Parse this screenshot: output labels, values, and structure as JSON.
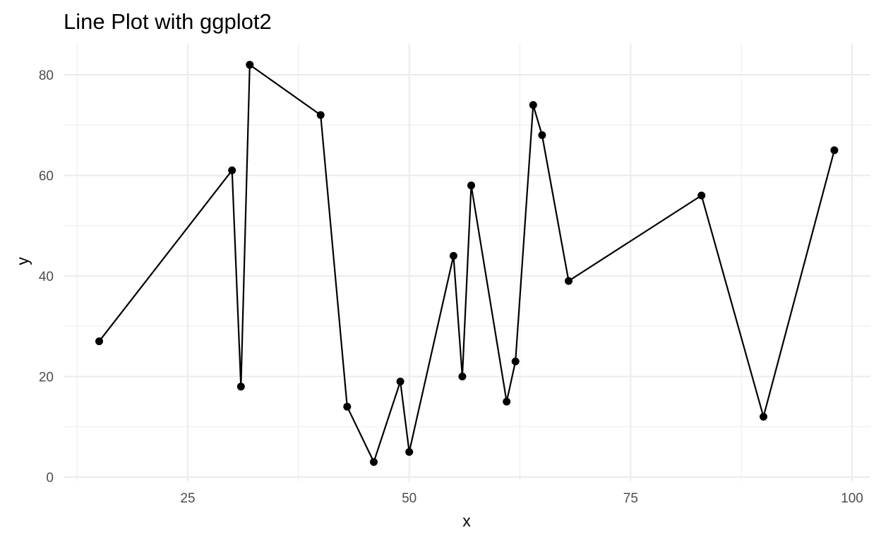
{
  "chart_data": {
    "type": "line",
    "title": "Line Plot with ggplot2",
    "xlabel": "x",
    "ylabel": "y",
    "xlim": [
      12,
      100
    ],
    "ylim": [
      0,
      85
    ],
    "x_ticks": [
      25,
      50,
      75,
      100
    ],
    "y_ticks": [
      0,
      20,
      40,
      60,
      80
    ],
    "x_minor": [
      12.5,
      37.5,
      62.5,
      87.5
    ],
    "y_minor": [
      10,
      30,
      50,
      70
    ],
    "grid": true,
    "legend": "none",
    "line_color": "#000000",
    "series": [
      {
        "x": [
          15,
          30,
          31,
          32,
          40,
          43,
          46,
          49,
          50,
          55,
          56,
          57,
          61,
          62,
          64,
          65,
          68,
          83,
          90,
          98
        ],
        "y": [
          27,
          61,
          18,
          82,
          72,
          14,
          3,
          19,
          5,
          44,
          20,
          58,
          15,
          23,
          74,
          68,
          39,
          56,
          12,
          65
        ]
      }
    ]
  }
}
